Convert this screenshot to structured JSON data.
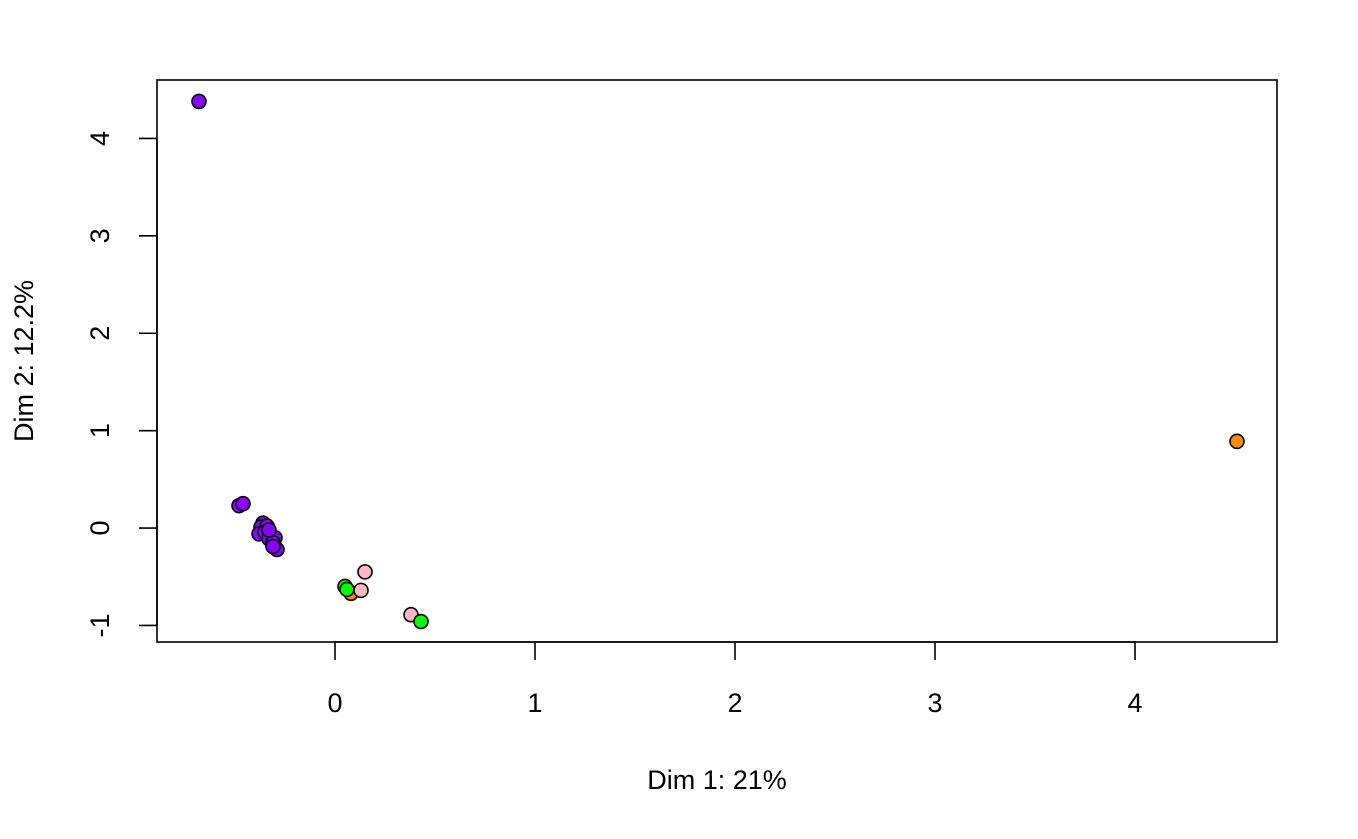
{
  "chart_data": {
    "type": "scatter",
    "title": "",
    "xlabel": "Dim 1: 21%",
    "ylabel": "Dim 2: 12.2%",
    "xlim": [
      -0.89,
      4.71
    ],
    "ylim": [
      -1.17,
      4.6
    ],
    "xticks": [
      0,
      1,
      2,
      3,
      4
    ],
    "yticks": [
      -1,
      0,
      1,
      2,
      3,
      4
    ],
    "xtick_labels": [
      "0",
      "1",
      "2",
      "3",
      "4"
    ],
    "ytick_labels": [
      "-1",
      "0",
      "1",
      "2",
      "3",
      "4"
    ],
    "grid": false,
    "legend": "none",
    "colors": {
      "purple": "#8b00ff",
      "green": "#00ff00",
      "pink": "#ffb6c1",
      "orange": "#ff8c00",
      "outline": "#000000"
    },
    "points": [
      {
        "x": -0.68,
        "y": 4.38,
        "color": "purple"
      },
      {
        "x": -0.48,
        "y": 0.23,
        "color": "purple"
      },
      {
        "x": -0.46,
        "y": 0.25,
        "color": "purple"
      },
      {
        "x": -0.36,
        "y": 0.05,
        "color": "purple"
      },
      {
        "x": -0.37,
        "y": 0.01,
        "color": "purple"
      },
      {
        "x": -0.34,
        "y": 0.02,
        "color": "purple"
      },
      {
        "x": -0.38,
        "y": -0.06,
        "color": "purple"
      },
      {
        "x": -0.35,
        "y": -0.04,
        "color": "purple"
      },
      {
        "x": -0.33,
        "y": -0.11,
        "color": "purple"
      },
      {
        "x": -0.3,
        "y": -0.1,
        "color": "purple"
      },
      {
        "x": -0.31,
        "y": -0.15,
        "color": "purple"
      },
      {
        "x": -0.29,
        "y": -0.22,
        "color": "purple"
      },
      {
        "x": -0.31,
        "y": -0.19,
        "color": "purple"
      },
      {
        "x": -0.33,
        "y": -0.02,
        "color": "purple"
      },
      {
        "x": 0.05,
        "y": -0.6,
        "color": "green"
      },
      {
        "x": 0.08,
        "y": -0.67,
        "color": "orange"
      },
      {
        "x": 0.06,
        "y": -0.63,
        "color": "green"
      },
      {
        "x": 0.13,
        "y": -0.64,
        "color": "pink"
      },
      {
        "x": 0.15,
        "y": -0.45,
        "color": "pink"
      },
      {
        "x": 0.38,
        "y": -0.89,
        "color": "pink"
      },
      {
        "x": 0.43,
        "y": -0.96,
        "color": "green"
      },
      {
        "x": 4.51,
        "y": 0.89,
        "color": "orange"
      }
    ]
  }
}
